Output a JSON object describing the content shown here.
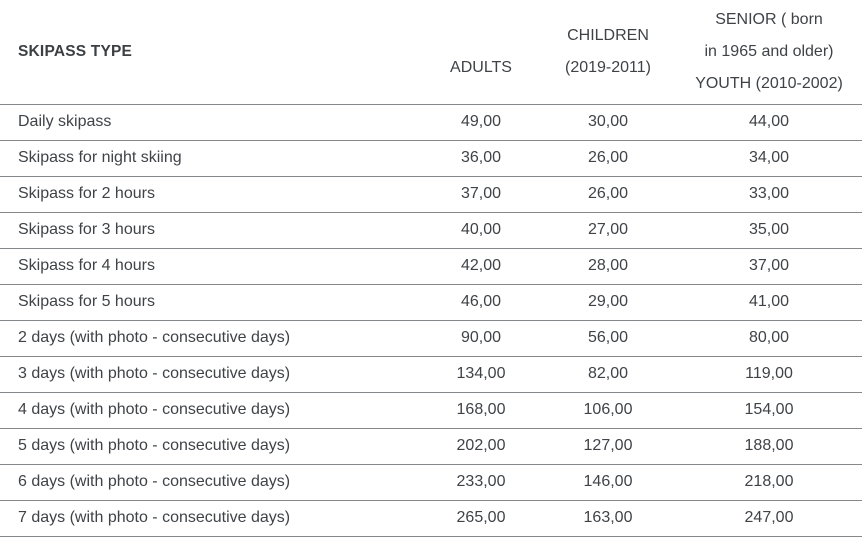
{
  "colors": {
    "background": "#ffffff",
    "text": "#3f4347",
    "header_text": "#3c4043",
    "border": "#85888b"
  },
  "table": {
    "columns": {
      "skipass_type": "SKIPASS TYPE",
      "adults": "ADULTS",
      "children_line1": "CHILDREN",
      "children_line2": "(2019-2011)",
      "senior_line1": "SENIOR ( born",
      "senior_line2": "in 1965 and older)",
      "senior_line3": "YOUTH (2010-2002)"
    },
    "rows": [
      {
        "type": "Daily skipass",
        "adults": "49,00",
        "children": "30,00",
        "senior_youth": "44,00"
      },
      {
        "type": "Skipass for night skiing",
        "adults": "36,00",
        "children": "26,00",
        "senior_youth": "34,00"
      },
      {
        "type": "Skipass for 2 hours",
        "adults": "37,00",
        "children": "26,00",
        "senior_youth": "33,00"
      },
      {
        "type": "Skipass for 3 hours",
        "adults": "40,00",
        "children": "27,00",
        "senior_youth": "35,00"
      },
      {
        "type": "Skipass for 4 hours",
        "adults": "42,00",
        "children": "28,00",
        "senior_youth": "37,00"
      },
      {
        "type": "Skipass for 5 hours",
        "adults": "46,00",
        "children": "29,00",
        "senior_youth": "41,00"
      },
      {
        "type": "2 days (with photo - consecutive days)",
        "adults": "90,00",
        "children": "56,00",
        "senior_youth": "80,00"
      },
      {
        "type": "3 days (with photo - consecutive days)",
        "adults": "134,00",
        "children": "82,00",
        "senior_youth": "119,00"
      },
      {
        "type": "4 days (with photo - consecutive days)",
        "adults": "168,00",
        "children": "106,00",
        "senior_youth": "154,00"
      },
      {
        "type": "5 days (with photo - consecutive days)",
        "adults": "202,00",
        "children": "127,00",
        "senior_youth": "188,00"
      },
      {
        "type": "6 days (with photo - consecutive days)",
        "adults": "233,00",
        "children": "146,00",
        "senior_youth": "218,00"
      },
      {
        "type": "7 days (with photo - consecutive days)",
        "adults": "265,00",
        "children": "163,00",
        "senior_youth": "247,00"
      }
    ]
  }
}
